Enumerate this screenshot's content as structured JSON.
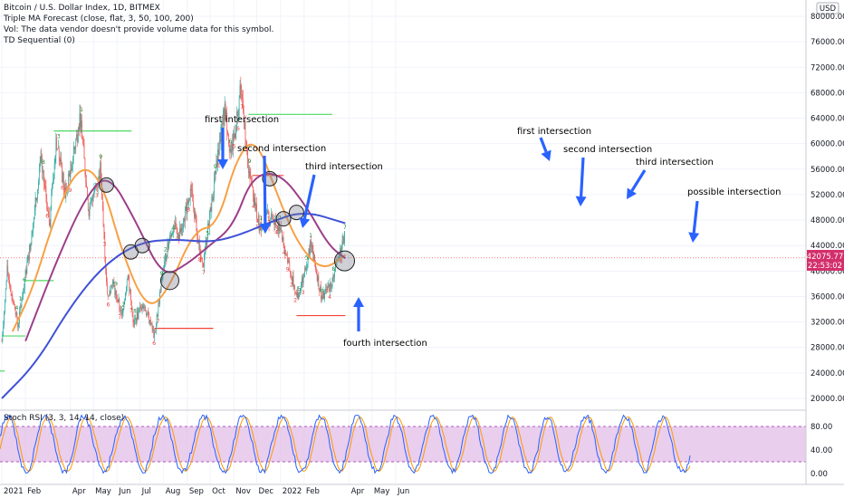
{
  "header": {
    "line1": "Bitcoin / U.S. Dollar Index, 1D, BITMEX",
    "line2": "Triple MA Forecast (close, flat, 3, 50, 100, 200)",
    "line3": "Vol: The data vendor doesn't provide volume data for this symbol.",
    "line4": "TD Sequential (0)"
  },
  "currency": "USD",
  "price_tag": {
    "price": "42075.77",
    "countdown": "22:53:02",
    "color": "#d32f6b"
  },
  "annotations": [
    "first intersection",
    "second intersection",
    "third intersection",
    "fourth intersection",
    "first intersection",
    "second intersection",
    "third intersection",
    "possible intersection"
  ],
  "colors": {
    "up": "#26a69a",
    "down": "#ef5350",
    "ma50": "#f7a145",
    "ma100": "#9c3f8a",
    "ma200": "#3f51d6",
    "stoch_k": "#2962ff",
    "stoch_d": "#ff9800",
    "stoch_band": "#e1bee7",
    "arrow": "#2962ff",
    "support": "#f44336",
    "resistance": "#4cd964"
  },
  "chart_data": [
    {
      "type": "candlestick",
      "y_axis": {
        "min": 16000,
        "max": 81000,
        "ticks": [
          "80000.00",
          "76000.00",
          "72000.00",
          "68000.00",
          "64000.00",
          "60000.00",
          "56000.00",
          "52000.00",
          "48000.00",
          "44000.00",
          "40000.00",
          "36000.00",
          "32000.00",
          "28000.00",
          "24000.00",
          "20000.00"
        ]
      },
      "x_axis": {
        "ticks": [
          "2021",
          "Feb",
          "Apr",
          "May",
          "Jun",
          "Jul",
          "Aug",
          "Sep",
          "Oct",
          "Nov",
          "Dec",
          "2022",
          "Feb",
          "Apr",
          "May",
          "Jun"
        ]
      },
      "close_path": [
        [
          "2021-01-01",
          29000
        ],
        [
          "2021-01-08",
          40000
        ],
        [
          "2021-01-22",
          31500
        ],
        [
          "2021-02-08",
          45000
        ],
        [
          "2021-02-21",
          57000
        ],
        [
          "2021-03-05",
          48000
        ],
        [
          "2021-03-13",
          61000
        ],
        [
          "2021-03-25",
          52000
        ],
        [
          "2021-04-14",
          64000
        ],
        [
          "2021-04-25",
          49000
        ],
        [
          "2021-05-10",
          56000
        ],
        [
          "2021-05-19",
          36500
        ],
        [
          "2021-05-26",
          38000
        ],
        [
          "2021-06-08",
          33000
        ],
        [
          "2021-06-15",
          40000
        ],
        [
          "2021-06-22",
          31500
        ],
        [
          "2021-07-05",
          35000
        ],
        [
          "2021-07-20",
          29800
        ],
        [
          "2021-08-01",
          41000
        ],
        [
          "2021-08-14",
          47500
        ],
        [
          "2021-08-20",
          45000
        ],
        [
          "2021-09-06",
          52500
        ],
        [
          "2021-09-21",
          40500
        ],
        [
          "2021-10-20",
          66000
        ],
        [
          "2021-10-28",
          58000
        ],
        [
          "2021-11-10",
          68700
        ],
        [
          "2021-11-20",
          56000
        ],
        [
          "2021-12-04",
          47000
        ],
        [
          "2021-12-15",
          48500
        ],
        [
          "2022-01-01",
          47000
        ],
        [
          "2022-01-10",
          41500
        ],
        [
          "2022-01-24",
          35500
        ],
        [
          "2022-02-10",
          44500
        ],
        [
          "2022-02-24",
          35500
        ],
        [
          "2022-03-10",
          38500
        ],
        [
          "2022-03-27",
          46000
        ]
      ],
      "moving_averages": [
        {
          "name": "MA50",
          "points": [
            [
              "2021-01-15",
              30500
            ],
            [
              "2021-02-10",
              37000
            ],
            [
              "2021-03-10",
              48000
            ],
            [
              "2021-04-10",
              56500
            ],
            [
              "2021-05-10",
              55000
            ],
            [
              "2021-06-10",
              42000
            ],
            [
              "2021-07-10",
              34000
            ],
            [
              "2021-08-05",
              36500
            ],
            [
              "2021-09-10",
              46500
            ],
            [
              "2021-10-10",
              47000
            ],
            [
              "2021-11-05",
              58000
            ],
            [
              "2021-11-30",
              61000
            ],
            [
              "2021-12-31",
              51000
            ],
            [
              "2022-01-25",
              44000
            ],
            [
              "2022-02-25",
              40000
            ],
            [
              "2022-03-27",
              42500
            ]
          ]
        },
        {
          "name": "MA100",
          "points": [
            [
              "2021-02-01",
              29000
            ],
            [
              "2021-03-15",
              42000
            ],
            [
              "2021-04-20",
              51500
            ],
            [
              "2021-05-20",
              55500
            ],
            [
              "2021-06-25",
              48000
            ],
            [
              "2021-07-30",
              39000
            ],
            [
              "2021-08-31",
              41000
            ],
            [
              "2021-09-30",
              44000
            ],
            [
              "2021-10-31",
              47000
            ],
            [
              "2021-11-25",
              55000
            ],
            [
              "2021-12-31",
              55500
            ],
            [
              "2022-02-05",
              50000
            ],
            [
              "2022-03-05",
              44000
            ],
            [
              "2022-03-27",
              42000
            ]
          ]
        },
        {
          "name": "MA200",
          "points": [
            [
              "2021-01-01",
              20000
            ],
            [
              "2021-02-15",
              25500
            ],
            [
              "2021-04-01",
              34500
            ],
            [
              "2021-05-15",
              41000
            ],
            [
              "2021-06-30",
              44500
            ],
            [
              "2021-08-15",
              45000
            ],
            [
              "2021-09-30",
              44500
            ],
            [
              "2021-11-05",
              45500
            ],
            [
              "2021-12-15",
              47500
            ],
            [
              "2022-01-31",
              49500
            ],
            [
              "2022-03-27",
              47500
            ]
          ]
        }
      ],
      "horizontal_levels": [
        {
          "kind": "resistance",
          "price": 62000,
          "from": "2021-03-10",
          "to": "2021-06-20"
        },
        {
          "kind": "resistance",
          "price": 64600,
          "from": "2021-11-20",
          "to": "2022-03-10"
        },
        {
          "kind": "resistance",
          "price": 38500,
          "from": "2021-02-01",
          "to": "2021-03-10"
        },
        {
          "kind": "resistance",
          "price": 29800,
          "from": "2021-01-01",
          "to": "2021-02-01"
        },
        {
          "kind": "resistance",
          "price": 24300,
          "from": "2020-12-28",
          "to": "2021-01-05"
        },
        {
          "kind": "support",
          "price": 31000,
          "from": "2021-07-20",
          "to": "2021-10-05"
        },
        {
          "kind": "support",
          "price": 55000,
          "from": "2021-11-25",
          "to": "2022-01-05"
        },
        {
          "kind": "support",
          "price": 33000,
          "from": "2022-01-22",
          "to": "2022-03-27"
        }
      ],
      "intersection_circles": [
        [
          "2021-05-18",
          53500
        ],
        [
          "2021-06-19",
          43000
        ],
        [
          "2021-07-04",
          44000
        ],
        [
          "2021-08-09",
          38500
        ],
        [
          "2021-12-18",
          54500
        ],
        [
          "2022-01-05",
          48200
        ],
        [
          "2022-01-22",
          49200
        ],
        [
          "2022-03-26",
          41600
        ]
      ]
    },
    {
      "type": "line",
      "title": "Stoch RSI (3, 3, 14, 14, close)",
      "y_axis": {
        "min": 0,
        "max": 100,
        "ticks": [
          "80.00",
          "40.00",
          "0.00"
        ]
      },
      "bands": [
        20,
        80
      ]
    }
  ]
}
